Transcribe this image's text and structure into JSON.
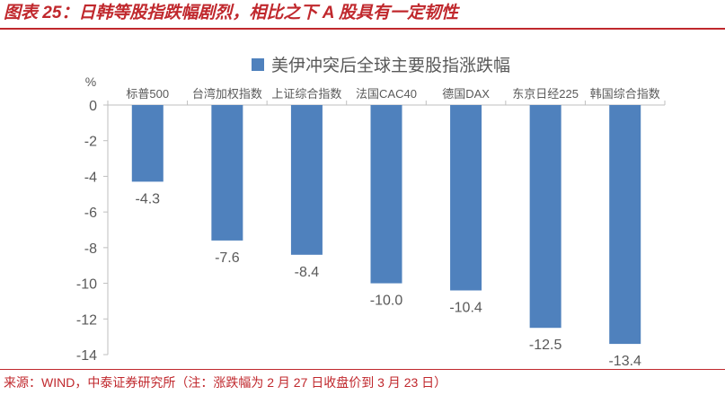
{
  "figure": {
    "title": "图表 25：日韩等股指跌幅剧烈，相比之下 A 股具有一定韧性",
    "source": "来源：WIND，中泰证券研究所（注：涨跌幅为 2 月 27 日收盘价到 3 月 23 日）"
  },
  "colors": {
    "bar": "#4f81bd",
    "accent": "#c0282d",
    "text": "#595959",
    "axis": "#bfbfbf"
  },
  "chart_data": {
    "type": "bar",
    "title": "",
    "ylabel": "%",
    "xlabel": "",
    "categories": [
      "标普500",
      "台湾加权指数",
      "上证综合指数",
      "法国CAC40",
      "德国DAX",
      "东京日经225",
      "韩国综合指数"
    ],
    "series": [
      {
        "name": "美伊冲突后全球主要股指涨跌幅",
        "values": [
          -4.3,
          -7.6,
          -8.4,
          -10.0,
          -10.4,
          -12.5,
          -13.4
        ]
      }
    ],
    "data_labels": [
      "-4.3",
      "-7.6",
      "-8.4",
      "-10.0",
      "-10.4",
      "-12.5",
      "-13.4"
    ],
    "ylim": [
      -14,
      0
    ],
    "yticks": [
      0,
      -2,
      -4,
      -6,
      -8,
      -10,
      -12,
      -14
    ],
    "ytick_labels": [
      "0",
      "-2",
      "-4",
      "-6",
      "-8",
      "-10",
      "-12",
      "-14"
    ],
    "grid": false,
    "legend_position": "top-center"
  }
}
